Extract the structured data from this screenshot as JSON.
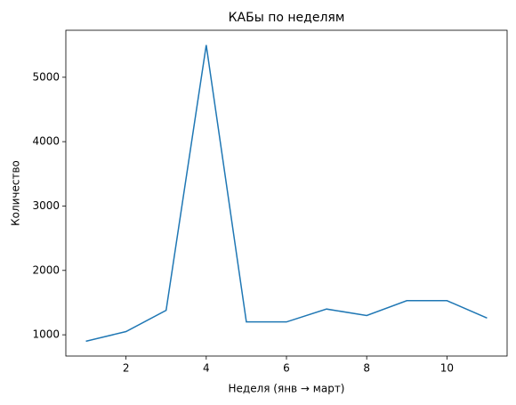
{
  "chart_data": {
    "type": "line",
    "title": "КАБы по неделям",
    "x_label": "Неделя (янв → март)",
    "y_label": "Количество",
    "x": [
      1,
      2,
      3,
      4,
      5,
      6,
      7,
      8,
      9,
      10,
      11
    ],
    "series": [
      {
        "name": "КАБы",
        "color": "#1f77b4",
        "values": [
          900,
          1050,
          1380,
          5500,
          1200,
          1200,
          1400,
          1300,
          1530,
          1530,
          1260
        ]
      }
    ],
    "xlim": [
      0.5,
      11.5
    ],
    "xticks": [
      2,
      4,
      6,
      8,
      10
    ],
    "ylim": [
      670,
      5730
    ],
    "yticks": [
      1000,
      2000,
      3000,
      4000,
      5000
    ]
  }
}
